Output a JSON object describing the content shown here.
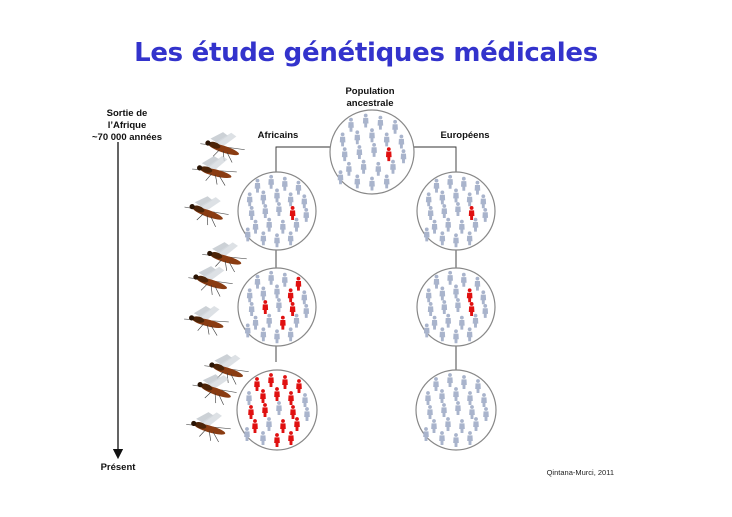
{
  "title": "Les étude génétiques médicales",
  "timeline": {
    "top_label": [
      "Sortie de",
      "l’Afrique",
      "~70 000 années"
    ],
    "bottom_label": "Présent"
  },
  "labels": {
    "root": [
      "Population",
      "ancestrale"
    ],
    "left_branch": "Africains",
    "right_branch": "Européens"
  },
  "credit": "Qintana-Murci, 2011",
  "colors": {
    "title": "#3333cc",
    "normal_person": "#a9b4cc",
    "affected_person": "#e01010",
    "circle_stroke": "#888888"
  },
  "populations": [
    {
      "id": "ancestral",
      "affected": 1
    },
    {
      "id": "africa-1",
      "affected": 1
    },
    {
      "id": "africa-2",
      "affected": 5
    },
    {
      "id": "africa-3",
      "affected": 15
    },
    {
      "id": "europe-1",
      "affected": 1
    },
    {
      "id": "europe-2",
      "affected": 2
    },
    {
      "id": "europe-3",
      "affected": 0
    }
  ],
  "icons": {
    "vector": "mosquito-icon",
    "person": "person-icon"
  }
}
